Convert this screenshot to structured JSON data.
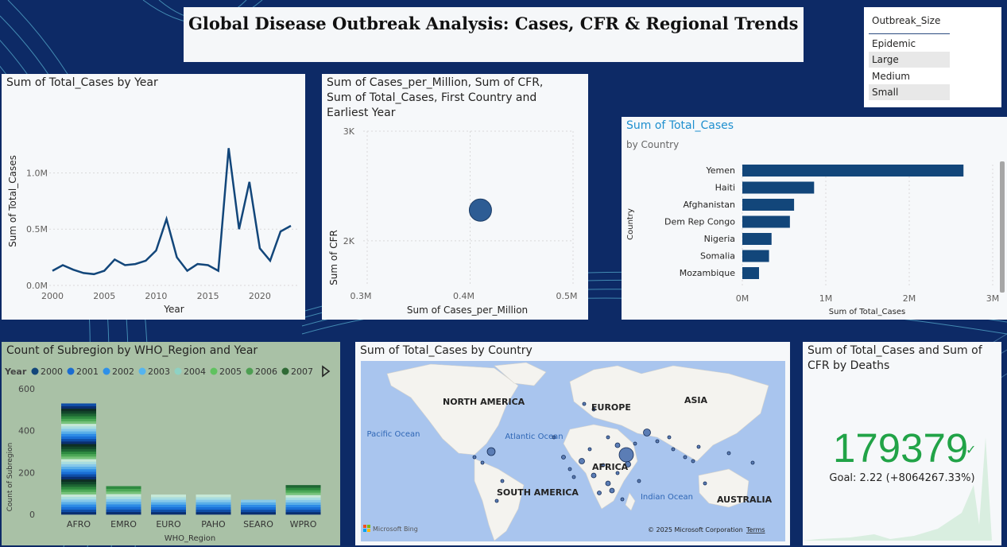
{
  "header": {
    "title": "Global Disease Outbreak Analysis: Cases, CFR & Regional Trends"
  },
  "slicer": {
    "header": "Outbreak_Size",
    "options": [
      "Epidemic",
      "Large",
      "Medium",
      "Small"
    ]
  },
  "colors": {
    "navy": "#0d2a66",
    "series": "#12467a",
    "bubble": "#2d5c94",
    "kpi": "#21a347"
  },
  "chart_data": [
    {
      "type": "line",
      "title": "Sum of Total_Cases by Year",
      "xlabel": "Year",
      "ylabel": "Sum of Total_Cases",
      "x": [
        2000,
        2001,
        2002,
        2003,
        2004,
        2005,
        2006,
        2007,
        2008,
        2009,
        2010,
        2011,
        2012,
        2013,
        2014,
        2015,
        2016,
        2017,
        2018,
        2019,
        2020,
        2021,
        2022,
        2023
      ],
      "values": [
        0.13,
        0.18,
        0.14,
        0.11,
        0.1,
        0.13,
        0.23,
        0.18,
        0.19,
        0.22,
        0.31,
        0.59,
        0.25,
        0.13,
        0.19,
        0.18,
        0.13,
        1.22,
        0.5,
        0.92,
        0.33,
        0.22,
        0.48,
        0.53
      ],
      "unit": "M",
      "ylim": [
        0,
        1.3
      ],
      "yticks": [
        "0.0M",
        "0.5M",
        "1.0M"
      ],
      "xticks": [
        "2000",
        "2005",
        "2010",
        "2015",
        "2020"
      ]
    },
    {
      "type": "scatter",
      "title": "Sum of Cases_per_Million, Sum of CFR, Sum of Total_Cases, First Country and Earliest Year",
      "xlabel": "Sum of Cases_per_Million",
      "ylabel": "Sum of CFR",
      "xlim": [
        0.3,
        0.5
      ],
      "ylim": [
        1.6,
        3.0
      ],
      "xticks": [
        "0.3M",
        "0.4M",
        "0.5M"
      ],
      "yticks": [
        "2K",
        "3K"
      ],
      "points": [
        {
          "x": 0.41,
          "y": 2.28
        }
      ]
    },
    {
      "type": "bar",
      "title": "Sum of Total_Cases",
      "subtitle": "by Country",
      "xlabel": "Sum of Total_Cases",
      "ylabel": "Country",
      "categories": [
        "Yemen",
        "Haiti",
        "Afghanistan",
        "Dem Rep Congo",
        "Nigeria",
        "Somalia",
        "Mozambique"
      ],
      "values": [
        2.65,
        0.86,
        0.62,
        0.57,
        0.35,
        0.32,
        0.2
      ],
      "unit": "M",
      "xlim": [
        0,
        3
      ],
      "xticks": [
        "0M",
        "1M",
        "2M",
        "3M"
      ]
    },
    {
      "type": "bar",
      "title": "Count of Subregion by WHO_Region and Year",
      "xlabel": "WHO_Region",
      "ylabel": "Count of Subregion",
      "legend_title": "Year",
      "legend": [
        "2000",
        "2001",
        "2002",
        "2003",
        "2004",
        "2005",
        "2006",
        "2007"
      ],
      "categories": [
        "AFRO",
        "EMRO",
        "EURO",
        "PAHO",
        "SEARO",
        "WPRO"
      ],
      "values": [
        530,
        135,
        95,
        95,
        70,
        140
      ],
      "ylim": [
        0,
        600
      ],
      "yticks": [
        "0",
        "200",
        "400",
        "600"
      ]
    }
  ],
  "map": {
    "title": "Sum of Total_Cases by Country",
    "labels": [
      "NORTH AMERICA",
      "EUROPE",
      "ASIA",
      "AFRICA",
      "SOUTH AMERICA",
      "AUSTRALIA"
    ],
    "oceans": [
      "Pacific Ocean",
      "Atlantic Ocean",
      "Indian Ocean"
    ],
    "brand": "Microsoft Bing",
    "copyright": "© 2025 Microsoft Corporation",
    "terms": "Terms"
  },
  "kpi": {
    "title": "Sum of Total_Cases and Sum of CFR by Deaths",
    "value": "179379",
    "goal": "Goal: 2.22 (+8064267.33%)"
  }
}
